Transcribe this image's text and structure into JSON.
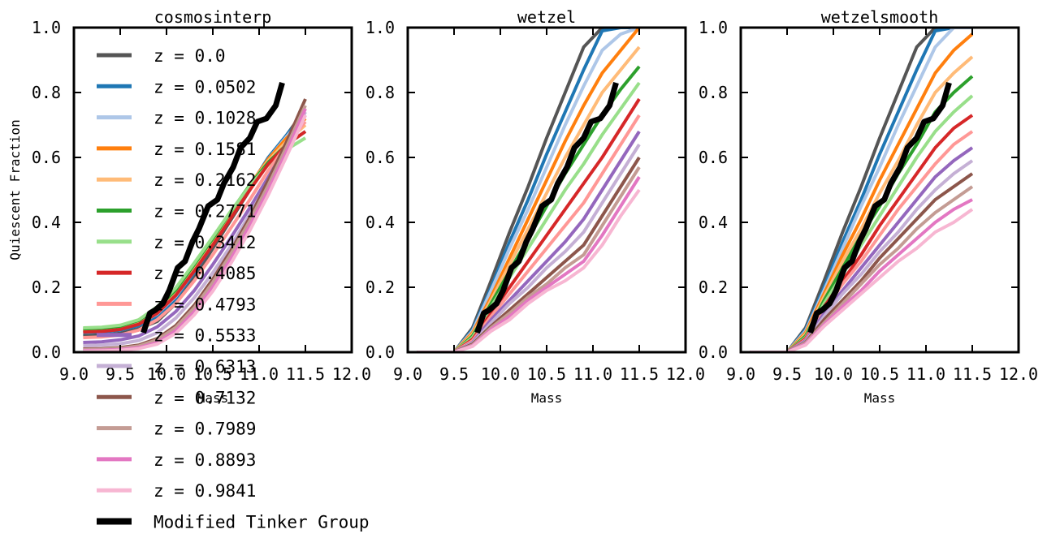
{
  "chart_data": [
    {
      "type": "line",
      "title": "cosmosinterp",
      "xlabel": "Mass",
      "ylabel": "Quiescent Fraction",
      "xlim": [
        9.0,
        12.0
      ],
      "ylim": [
        0.0,
        1.0
      ],
      "xticks": [
        "9.0",
        "9.5",
        "10.0",
        "10.5",
        "11.0",
        "11.5",
        "12.0"
      ],
      "yticks": [
        "0.0",
        "0.2",
        "0.4",
        "0.6",
        "0.8",
        "1.0"
      ],
      "x": [
        9.1,
        9.3,
        9.5,
        9.7,
        9.9,
        10.1,
        10.3,
        10.5,
        10.7,
        10.9,
        11.1,
        11.3,
        11.5
      ],
      "series": [
        {
          "name": "z = 0.0",
          "values": [
            0.05,
            0.052,
            0.058,
            0.072,
            0.095,
            0.15,
            0.23,
            0.32,
            0.41,
            0.5,
            0.59,
            0.67,
            0.75
          ]
        },
        {
          "name": "z = 0.0502",
          "values": [
            0.06,
            0.062,
            0.068,
            0.082,
            0.11,
            0.165,
            0.245,
            0.33,
            0.42,
            0.51,
            0.6,
            0.67,
            0.74
          ]
        },
        {
          "name": "z = 0.1028",
          "values": [
            0.065,
            0.067,
            0.073,
            0.088,
            0.118,
            0.172,
            0.25,
            0.335,
            0.425,
            0.51,
            0.595,
            0.665,
            0.73
          ]
        },
        {
          "name": "z = 0.1581",
          "values": [
            0.068,
            0.07,
            0.076,
            0.092,
            0.122,
            0.178,
            0.255,
            0.34,
            0.43,
            0.515,
            0.595,
            0.66,
            0.72
          ]
        },
        {
          "name": "z = 0.2162",
          "values": [
            0.07,
            0.072,
            0.078,
            0.095,
            0.128,
            0.185,
            0.262,
            0.345,
            0.432,
            0.515,
            0.59,
            0.65,
            0.7
          ]
        },
        {
          "name": "z = 0.2771",
          "values": [
            0.072,
            0.074,
            0.08,
            0.098,
            0.135,
            0.192,
            0.27,
            0.35,
            0.435,
            0.515,
            0.585,
            0.64,
            0.68
          ]
        },
        {
          "name": "z = 0.3412",
          "values": [
            0.075,
            0.077,
            0.083,
            0.1,
            0.14,
            0.198,
            0.275,
            0.355,
            0.437,
            0.512,
            0.578,
            0.625,
            0.66
          ]
        },
        {
          "name": "z = 0.4085",
          "values": [
            0.062,
            0.064,
            0.07,
            0.086,
            0.12,
            0.175,
            0.25,
            0.33,
            0.415,
            0.5,
            0.58,
            0.64,
            0.68
          ]
        },
        {
          "name": "z = 0.4793",
          "values": [
            0.045,
            0.047,
            0.053,
            0.068,
            0.1,
            0.15,
            0.22,
            0.3,
            0.385,
            0.47,
            0.56,
            0.64,
            0.71
          ]
        },
        {
          "name": "z = 0.5533",
          "values": [
            0.03,
            0.032,
            0.038,
            0.05,
            0.078,
            0.125,
            0.19,
            0.27,
            0.355,
            0.445,
            0.54,
            0.635,
            0.73
          ]
        },
        {
          "name": "z = 0.6313",
          "values": [
            0.02,
            0.022,
            0.026,
            0.036,
            0.06,
            0.105,
            0.168,
            0.245,
            0.33,
            0.425,
            0.525,
            0.63,
            0.74
          ]
        },
        {
          "name": "z = 0.7132",
          "values": [
            0.01,
            0.011,
            0.014,
            0.022,
            0.042,
            0.082,
            0.145,
            0.225,
            0.315,
            0.415,
            0.53,
            0.65,
            0.78
          ]
        },
        {
          "name": "z = 0.7989",
          "values": [
            0.008,
            0.009,
            0.012,
            0.019,
            0.038,
            0.076,
            0.137,
            0.215,
            0.305,
            0.405,
            0.515,
            0.635,
            0.76
          ]
        },
        {
          "name": "z = 0.8893",
          "values": [
            0.005,
            0.006,
            0.008,
            0.014,
            0.03,
            0.066,
            0.125,
            0.2,
            0.29,
            0.39,
            0.5,
            0.62,
            0.75
          ]
        },
        {
          "name": "z = 0.9841",
          "values": [
            0.003,
            0.004,
            0.006,
            0.011,
            0.025,
            0.058,
            0.115,
            0.188,
            0.276,
            0.375,
            0.485,
            0.605,
            0.73
          ]
        }
      ],
      "group": {
        "name": "Modified Tinker Group",
        "x": [
          9.75,
          9.82,
          9.88,
          9.96,
          10.03,
          10.12,
          10.2,
          10.28,
          10.35,
          10.45,
          10.55,
          10.62,
          10.72,
          10.8,
          10.9,
          10.98,
          11.08,
          11.18,
          11.25
        ],
        "values": [
          0.06,
          0.12,
          0.13,
          0.15,
          0.19,
          0.26,
          0.28,
          0.34,
          0.38,
          0.45,
          0.47,
          0.52,
          0.57,
          0.63,
          0.66,
          0.71,
          0.72,
          0.76,
          0.83
        ]
      },
      "legend": "upper left"
    },
    {
      "type": "line",
      "title": "wetzel",
      "xlabel": "Mass",
      "xlim": [
        9.0,
        12.0
      ],
      "ylim": [
        0.0,
        1.0
      ],
      "xticks": [
        "9.0",
        "9.5",
        "10.0",
        "10.5",
        "11.0",
        "11.5",
        "12.0"
      ],
      "yticks": [
        "0.0",
        "0.2",
        "0.4",
        "0.6",
        "0.8",
        "1.0"
      ],
      "x": [
        9.1,
        9.3,
        9.5,
        9.7,
        9.9,
        10.1,
        10.3,
        10.5,
        10.7,
        10.9,
        11.1,
        11.3,
        11.5
      ],
      "series": [
        {
          "name": "z = 0.0",
          "values": [
            0.0,
            0.0,
            0.0,
            0.075,
            0.22,
            0.37,
            0.51,
            0.66,
            0.8,
            0.94,
            1.0,
            1.0,
            1.0
          ]
        },
        {
          "name": "z = 0.0502",
          "values": [
            0.0,
            0.0,
            0.0,
            0.07,
            0.2,
            0.34,
            0.47,
            0.61,
            0.74,
            0.87,
            0.99,
            1.0,
            1.0
          ]
        },
        {
          "name": "z = 0.1028",
          "values": [
            0.0,
            0.0,
            0.0,
            0.065,
            0.19,
            0.32,
            0.44,
            0.57,
            0.7,
            0.82,
            0.93,
            0.98,
            1.0
          ]
        },
        {
          "name": "z = 0.1581",
          "values": [
            0.0,
            0.0,
            0.0,
            0.06,
            0.17,
            0.29,
            0.41,
            0.53,
            0.65,
            0.76,
            0.86,
            0.93,
            1.0
          ]
        },
        {
          "name": "z = 0.2162",
          "values": [
            0.0,
            0.0,
            0.0,
            0.055,
            0.16,
            0.27,
            0.38,
            0.49,
            0.6,
            0.7,
            0.8,
            0.87,
            0.94
          ]
        },
        {
          "name": "z = 0.2771",
          "values": [
            0.0,
            0.0,
            0.0,
            0.05,
            0.15,
            0.25,
            0.35,
            0.45,
            0.55,
            0.64,
            0.73,
            0.81,
            0.88
          ]
        },
        {
          "name": "z = 0.3412",
          "values": [
            0.0,
            0.0,
            0.0,
            0.045,
            0.14,
            0.23,
            0.32,
            0.41,
            0.5,
            0.58,
            0.67,
            0.75,
            0.83
          ]
        },
        {
          "name": "z = 0.4085",
          "values": [
            0.0,
            0.0,
            0.0,
            0.04,
            0.12,
            0.2,
            0.28,
            0.36,
            0.44,
            0.52,
            0.6,
            0.69,
            0.78
          ]
        },
        {
          "name": "z = 0.4793",
          "values": [
            0.0,
            0.0,
            0.0,
            0.035,
            0.11,
            0.18,
            0.25,
            0.32,
            0.39,
            0.46,
            0.55,
            0.64,
            0.73
          ]
        },
        {
          "name": "z = 0.5533",
          "values": [
            0.0,
            0.0,
            0.0,
            0.03,
            0.1,
            0.16,
            0.22,
            0.28,
            0.34,
            0.41,
            0.5,
            0.59,
            0.68
          ]
        },
        {
          "name": "z = 0.6313",
          "values": [
            0.0,
            0.0,
            0.0,
            0.028,
            0.09,
            0.15,
            0.2,
            0.26,
            0.31,
            0.37,
            0.46,
            0.55,
            0.64
          ]
        },
        {
          "name": "z = 0.7132",
          "values": [
            0.0,
            0.0,
            0.0,
            0.025,
            0.08,
            0.13,
            0.18,
            0.23,
            0.28,
            0.33,
            0.42,
            0.51,
            0.6
          ]
        },
        {
          "name": "z = 0.7989",
          "values": [
            0.0,
            0.0,
            0.0,
            0.022,
            0.075,
            0.12,
            0.17,
            0.21,
            0.26,
            0.3,
            0.39,
            0.48,
            0.57
          ]
        },
        {
          "name": "z = 0.8893",
          "values": [
            0.0,
            0.0,
            0.0,
            0.02,
            0.07,
            0.11,
            0.16,
            0.2,
            0.24,
            0.28,
            0.36,
            0.45,
            0.54
          ]
        },
        {
          "name": "z = 0.9841",
          "values": [
            0.0,
            0.0,
            0.0,
            0.018,
            0.065,
            0.1,
            0.15,
            0.19,
            0.22,
            0.26,
            0.33,
            0.42,
            0.5
          ]
        }
      ],
      "group": {
        "name": "Modified Tinker Group",
        "x": [
          9.75,
          9.82,
          9.88,
          9.96,
          10.03,
          10.12,
          10.2,
          10.28,
          10.35,
          10.45,
          10.55,
          10.62,
          10.72,
          10.8,
          10.9,
          10.98,
          11.08,
          11.18,
          11.25
        ],
        "values": [
          0.06,
          0.12,
          0.13,
          0.15,
          0.19,
          0.26,
          0.28,
          0.34,
          0.38,
          0.45,
          0.47,
          0.52,
          0.57,
          0.63,
          0.66,
          0.71,
          0.72,
          0.76,
          0.83
        ]
      }
    },
    {
      "type": "line",
      "title": "wetzelsmooth",
      "xlabel": "Mass",
      "xlim": [
        9.0,
        12.0
      ],
      "ylim": [
        0.0,
        1.0
      ],
      "xticks": [
        "9.0",
        "9.5",
        "10.0",
        "10.5",
        "11.0",
        "11.5",
        "12.0"
      ],
      "yticks": [
        "0.0",
        "0.2",
        "0.4",
        "0.6",
        "0.8",
        "1.0"
      ],
      "x": [
        9.1,
        9.3,
        9.5,
        9.7,
        9.9,
        10.1,
        10.3,
        10.5,
        10.7,
        10.9,
        11.1,
        11.3,
        11.5
      ],
      "series": [
        {
          "name": "z = 0.0",
          "values": [
            0.0,
            0.0,
            0.0,
            0.075,
            0.22,
            0.37,
            0.51,
            0.66,
            0.8,
            0.94,
            1.0,
            1.0,
            1.0
          ]
        },
        {
          "name": "z = 0.0502",
          "values": [
            0.0,
            0.0,
            0.0,
            0.07,
            0.2,
            0.34,
            0.47,
            0.61,
            0.74,
            0.87,
            0.99,
            1.0,
            1.0
          ]
        },
        {
          "name": "z = 0.1028",
          "values": [
            0.0,
            0.0,
            0.0,
            0.065,
            0.19,
            0.32,
            0.45,
            0.57,
            0.7,
            0.82,
            0.94,
            1.0,
            1.0
          ]
        },
        {
          "name": "z = 0.1581",
          "values": [
            0.0,
            0.0,
            0.0,
            0.06,
            0.18,
            0.3,
            0.41,
            0.53,
            0.64,
            0.75,
            0.86,
            0.93,
            0.98
          ]
        },
        {
          "name": "z = 0.2162",
          "values": [
            0.0,
            0.0,
            0.0,
            0.055,
            0.17,
            0.28,
            0.38,
            0.49,
            0.59,
            0.7,
            0.8,
            0.86,
            0.91
          ]
        },
        {
          "name": "z = 0.2771",
          "values": [
            0.0,
            0.0,
            0.0,
            0.05,
            0.16,
            0.26,
            0.36,
            0.45,
            0.55,
            0.64,
            0.74,
            0.8,
            0.85
          ]
        },
        {
          "name": "z = 0.3412",
          "values": [
            0.0,
            0.0,
            0.0,
            0.045,
            0.15,
            0.24,
            0.33,
            0.42,
            0.51,
            0.6,
            0.68,
            0.74,
            0.79
          ]
        },
        {
          "name": "z = 0.4085",
          "values": [
            0.0,
            0.0,
            0.0,
            0.042,
            0.14,
            0.22,
            0.3,
            0.39,
            0.47,
            0.55,
            0.63,
            0.69,
            0.73
          ]
        },
        {
          "name": "z = 0.4793",
          "values": [
            0.0,
            0.0,
            0.0,
            0.038,
            0.13,
            0.21,
            0.28,
            0.36,
            0.44,
            0.51,
            0.58,
            0.64,
            0.68
          ]
        },
        {
          "name": "z = 0.5533",
          "values": [
            0.0,
            0.0,
            0.0,
            0.035,
            0.12,
            0.19,
            0.26,
            0.33,
            0.4,
            0.47,
            0.54,
            0.59,
            0.63
          ]
        },
        {
          "name": "z = 0.6313",
          "values": [
            0.0,
            0.0,
            0.0,
            0.032,
            0.11,
            0.18,
            0.24,
            0.31,
            0.37,
            0.44,
            0.5,
            0.55,
            0.59
          ]
        },
        {
          "name": "z = 0.7132",
          "values": [
            0.0,
            0.0,
            0.0,
            0.03,
            0.1,
            0.16,
            0.22,
            0.29,
            0.35,
            0.41,
            0.47,
            0.51,
            0.55
          ]
        },
        {
          "name": "z = 0.7989",
          "values": [
            0.0,
            0.0,
            0.0,
            0.028,
            0.09,
            0.15,
            0.21,
            0.27,
            0.32,
            0.38,
            0.43,
            0.47,
            0.51
          ]
        },
        {
          "name": "z = 0.8893",
          "values": [
            0.0,
            0.0,
            0.0,
            0.025,
            0.085,
            0.14,
            0.19,
            0.25,
            0.3,
            0.35,
            0.4,
            0.44,
            0.47
          ]
        },
        {
          "name": "z = 0.9841",
          "values": [
            0.0,
            0.0,
            0.0,
            0.022,
            0.08,
            0.13,
            0.18,
            0.23,
            0.28,
            0.32,
            0.37,
            0.4,
            0.44
          ]
        }
      ],
      "group": {
        "name": "Modified Tinker Group",
        "x": [
          9.75,
          9.82,
          9.88,
          9.96,
          10.03,
          10.12,
          10.2,
          10.28,
          10.35,
          10.45,
          10.55,
          10.62,
          10.72,
          10.8,
          10.9,
          10.98,
          11.08,
          11.18,
          11.25
        ],
        "values": [
          0.06,
          0.12,
          0.13,
          0.15,
          0.19,
          0.26,
          0.28,
          0.34,
          0.38,
          0.45,
          0.47,
          0.52,
          0.57,
          0.63,
          0.66,
          0.71,
          0.72,
          0.76,
          0.83
        ]
      }
    }
  ],
  "legend": {
    "entries": [
      {
        "label": "z = 0.0",
        "color": "#555555"
      },
      {
        "label": "z = 0.0502",
        "color": "#1f77b4"
      },
      {
        "label": "z = 0.1028",
        "color": "#aec7e8"
      },
      {
        "label": "z = 0.1581",
        "color": "#ff7f0e"
      },
      {
        "label": "z = 0.2162",
        "color": "#ffbb78"
      },
      {
        "label": "z = 0.2771",
        "color": "#2ca02c"
      },
      {
        "label": "z = 0.3412",
        "color": "#98df8a"
      },
      {
        "label": "z = 0.4085",
        "color": "#d62728"
      },
      {
        "label": "z = 0.4793",
        "color": "#ff9896"
      },
      {
        "label": "z = 0.5533",
        "color": "#9467bd"
      },
      {
        "label": "z = 0.6313",
        "color": "#c5b0d5"
      },
      {
        "label": "z = 0.7132",
        "color": "#8c564b"
      },
      {
        "label": "z = 0.7989",
        "color": "#c49c94"
      },
      {
        "label": "z = 0.8893",
        "color": "#e377c2"
      },
      {
        "label": "z = 0.9841",
        "color": "#f7b6d2"
      },
      {
        "label": "Modified Tinker Group",
        "color": "#000000"
      }
    ]
  }
}
